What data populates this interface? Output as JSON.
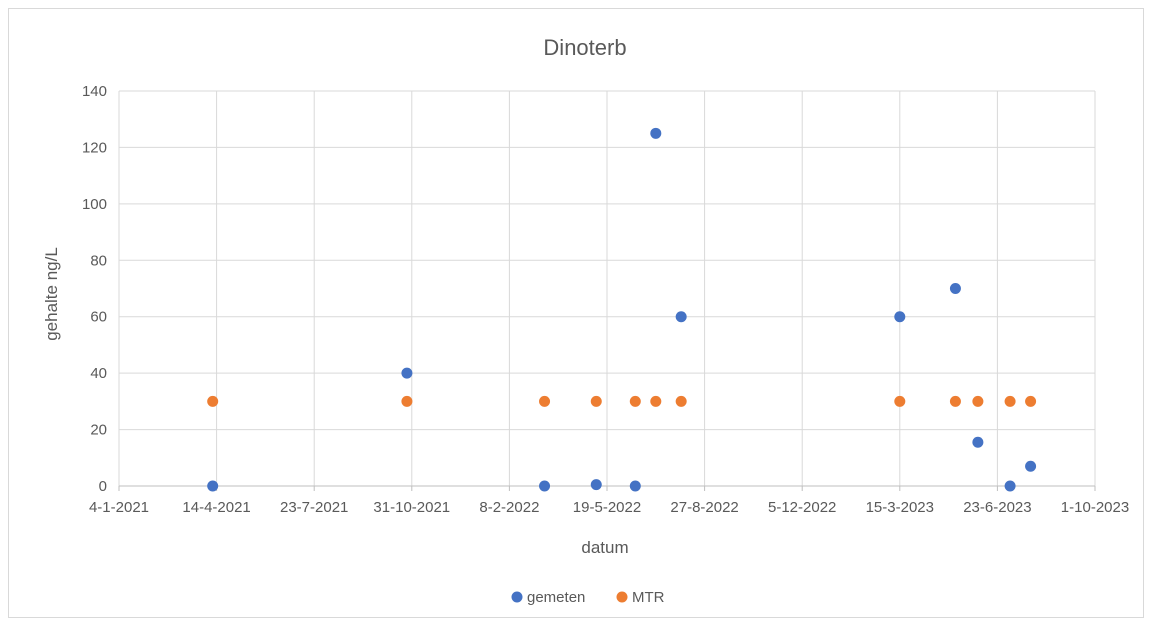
{
  "chart_data": {
    "type": "scatter",
    "title": "Dinoterb",
    "xlabel": "datum",
    "ylabel": "gehalte ng/L",
    "x_axis_type": "date",
    "xlim": [
      "2021-01-04",
      "2023-10-01"
    ],
    "x_ticks": [
      {
        "date": "2021-01-04",
        "label": "4-1-2021"
      },
      {
        "date": "2021-04-14",
        "label": "14-4-2021"
      },
      {
        "date": "2021-07-23",
        "label": "23-7-2021"
      },
      {
        "date": "2021-10-31",
        "label": "31-10-2021"
      },
      {
        "date": "2022-02-08",
        "label": "8-2-2022"
      },
      {
        "date": "2022-05-19",
        "label": "19-5-2022"
      },
      {
        "date": "2022-08-27",
        "label": "27-8-2022"
      },
      {
        "date": "2022-12-05",
        "label": "5-12-2022"
      },
      {
        "date": "2023-03-15",
        "label": "15-3-2023"
      },
      {
        "date": "2023-06-23",
        "label": "23-6-2023"
      },
      {
        "date": "2023-10-01",
        "label": "1-10-2023"
      }
    ],
    "ylim": [
      0,
      140
    ],
    "y_ticks": [
      0,
      20,
      40,
      60,
      80,
      100,
      120,
      140
    ],
    "grid": true,
    "legend_position": "bottom",
    "series": [
      {
        "name": "gemeten",
        "color": "#4472c4",
        "points": [
          {
            "x": "2021-04-10",
            "y": 0
          },
          {
            "x": "2021-10-26",
            "y": 40
          },
          {
            "x": "2022-03-16",
            "y": 0
          },
          {
            "x": "2022-05-08",
            "y": 0.5
          },
          {
            "x": "2022-06-17",
            "y": 0
          },
          {
            "x": "2022-07-08",
            "y": 125
          },
          {
            "x": "2022-08-03",
            "y": 60
          },
          {
            "x": "2023-03-15",
            "y": 60
          },
          {
            "x": "2023-05-11",
            "y": 70
          },
          {
            "x": "2023-06-03",
            "y": 15.5
          },
          {
            "x": "2023-07-06",
            "y": 0
          },
          {
            "x": "2023-07-27",
            "y": 7
          }
        ]
      },
      {
        "name": "MTR",
        "color": "#ed7d31",
        "points": [
          {
            "x": "2021-04-10",
            "y": 30
          },
          {
            "x": "2021-10-26",
            "y": 30
          },
          {
            "x": "2022-03-16",
            "y": 30
          },
          {
            "x": "2022-05-08",
            "y": 30
          },
          {
            "x": "2022-06-17",
            "y": 30
          },
          {
            "x": "2022-07-08",
            "y": 30
          },
          {
            "x": "2022-08-03",
            "y": 30
          },
          {
            "x": "2023-03-15",
            "y": 30
          },
          {
            "x": "2023-05-11",
            "y": 30
          },
          {
            "x": "2023-06-03",
            "y": 30
          },
          {
            "x": "2023-07-06",
            "y": 30
          },
          {
            "x": "2023-07-27",
            "y": 30
          }
        ]
      }
    ]
  }
}
